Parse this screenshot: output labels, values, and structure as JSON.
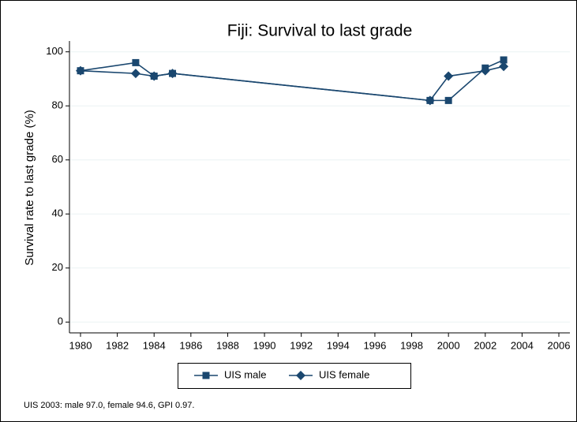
{
  "chart_data": {
    "type": "line",
    "title": "Fiji: Survival to last grade",
    "y_label": "Survival rate to last grade (%)",
    "note": "UIS 2003: male 97.0, female 94.6, GPI 0.97.",
    "x": [
      1980,
      1983,
      1984,
      1985,
      1999,
      2000,
      2002,
      2003
    ],
    "series": [
      {
        "name": "UIS male",
        "color": "#1a476f",
        "marker": "square",
        "values": [
          93,
          96,
          91,
          92,
          82,
          82,
          94,
          97
        ]
      },
      {
        "name": "UIS female",
        "color": "#1a476f",
        "marker": "diamond",
        "values": [
          93,
          92,
          91,
          92,
          82,
          91,
          93,
          94.6
        ]
      }
    ],
    "xlim": [
      1979.4,
      2006.6
    ],
    "xticks": [
      1980,
      1982,
      1984,
      1986,
      1988,
      1990,
      1992,
      1994,
      1996,
      1998,
      2000,
      2002,
      2004,
      2006
    ],
    "ylim": [
      -4,
      104
    ],
    "yticks": [
      0,
      20,
      40,
      60,
      80,
      100
    ],
    "grid": true,
    "legend": "bottom"
  }
}
